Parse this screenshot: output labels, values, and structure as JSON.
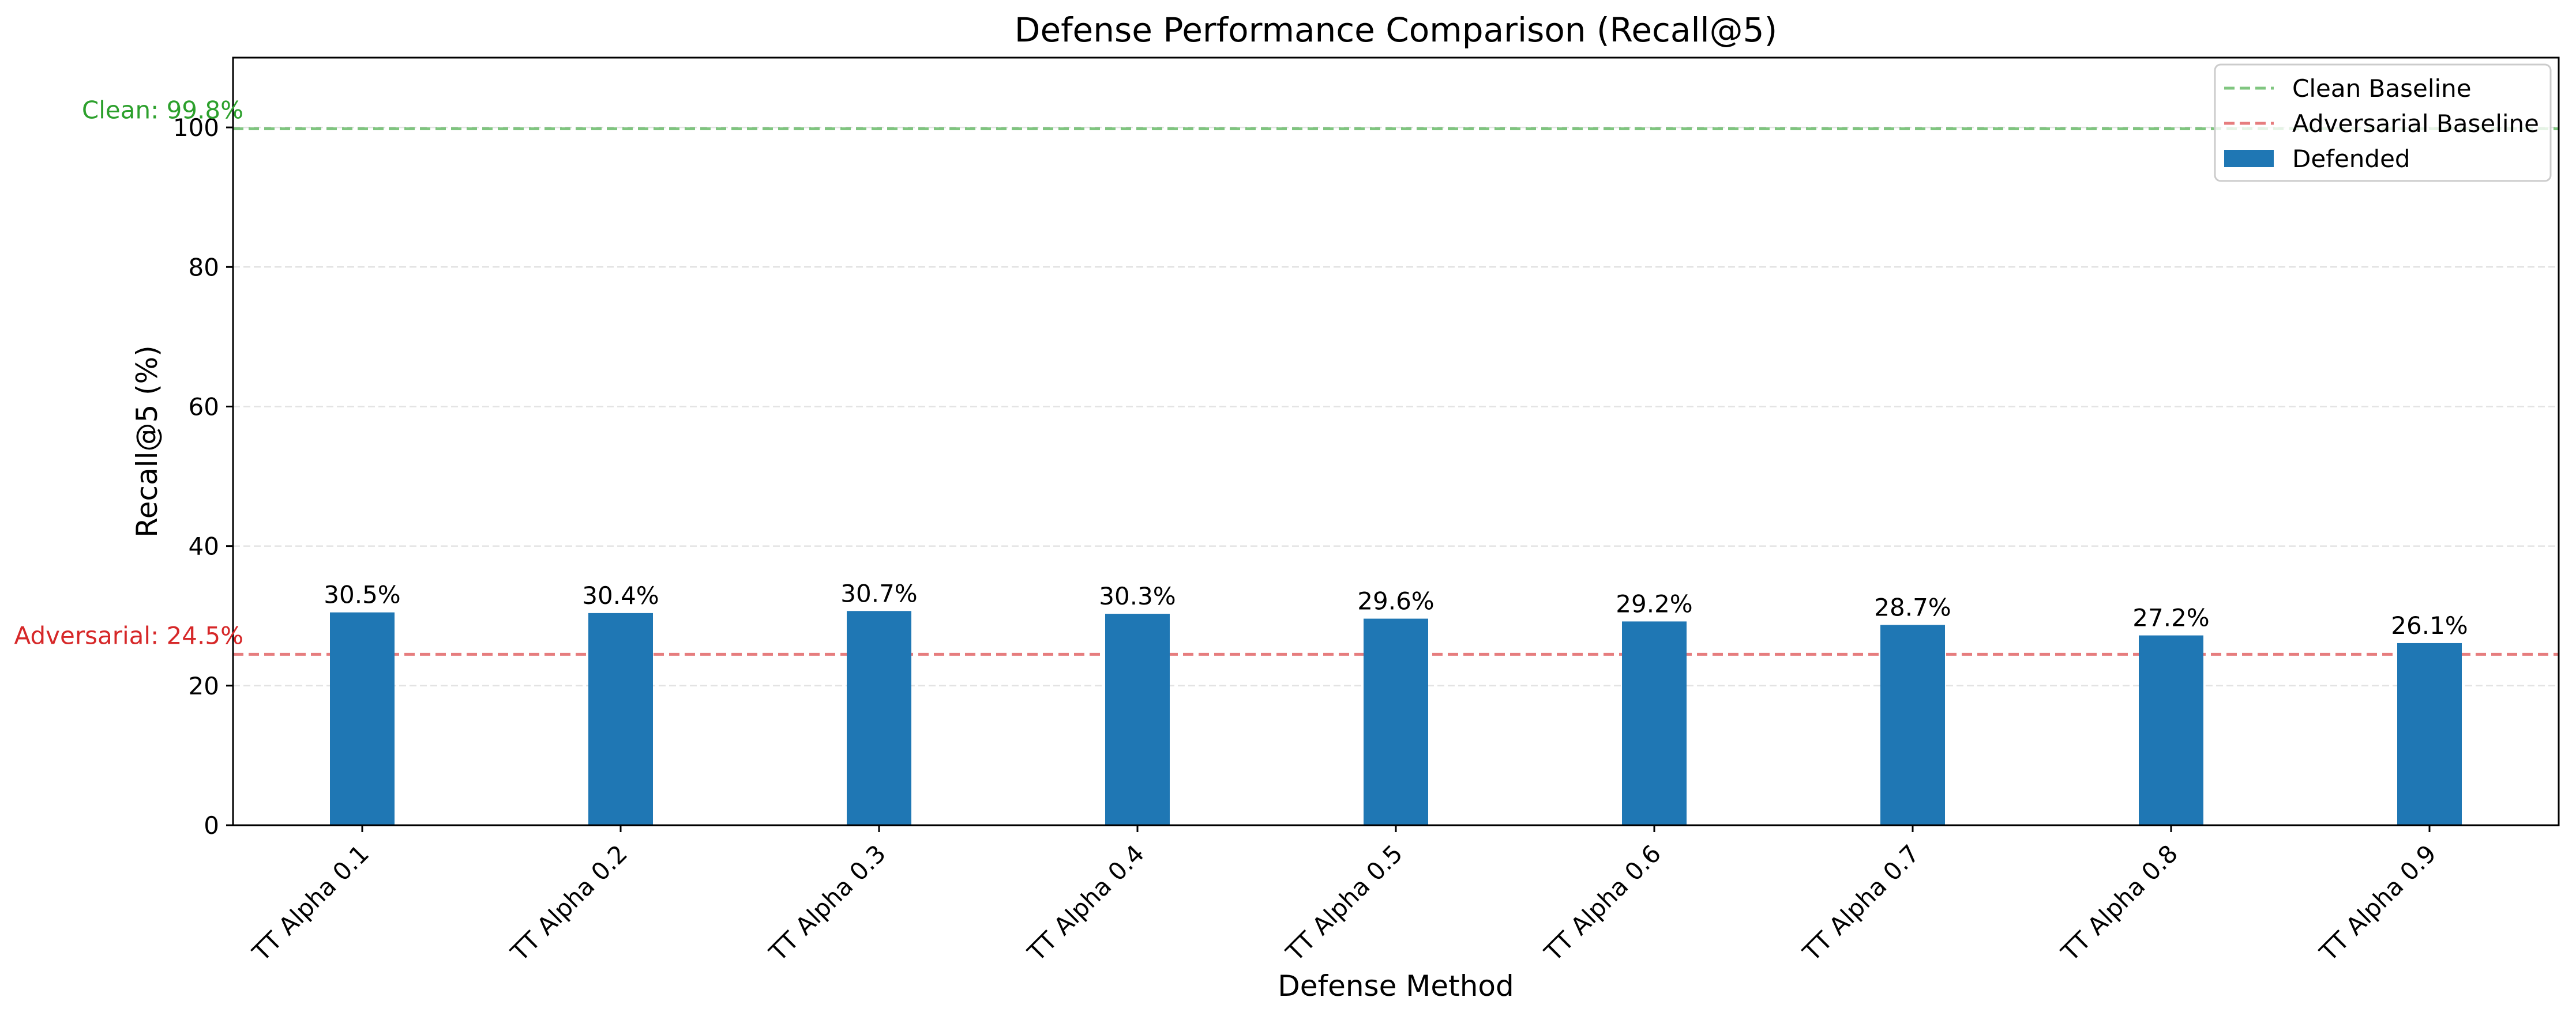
{
  "chart_data": {
    "type": "bar",
    "title": "Defense Performance Comparison (Recall@5)",
    "xlabel": "Defense Method",
    "ylabel": "Recall@5 (%)",
    "ylim": [
      0,
      110
    ],
    "yticks": [
      0,
      20,
      40,
      60,
      80,
      100
    ],
    "ytick_labels": [
      "0",
      "20",
      "40",
      "60",
      "80",
      "100"
    ],
    "grid": "horizontal dashed",
    "legend_position": "top-right",
    "categories": [
      "TT Alpha 0.1",
      "TT Alpha 0.2",
      "TT Alpha 0.3",
      "TT Alpha 0.4",
      "TT Alpha 0.5",
      "TT Alpha 0.6",
      "TT Alpha 0.7",
      "TT Alpha 0.8",
      "TT Alpha 0.9"
    ],
    "series": [
      {
        "name": "Defended",
        "color": "#1f77b4",
        "values": [
          30.5,
          30.4,
          30.7,
          30.3,
          29.6,
          29.2,
          28.7,
          27.2,
          26.1
        ],
        "labels": [
          "30.5%",
          "30.4%",
          "30.7%",
          "30.3%",
          "29.6%",
          "29.2%",
          "28.7%",
          "27.2%",
          "26.1%"
        ]
      }
    ],
    "reference_lines": [
      {
        "name": "Clean Baseline",
        "value": 99.8,
        "color": "#2ca02c",
        "label": "Clean: 99.8%",
        "style": "dashed"
      },
      {
        "name": "Adversarial Baseline",
        "value": 24.5,
        "color": "#d62728",
        "label": "Adversarial: 24.5%",
        "style": "dashed"
      }
    ],
    "legend": [
      "Clean Baseline",
      "Adversarial Baseline",
      "Defended"
    ]
  }
}
